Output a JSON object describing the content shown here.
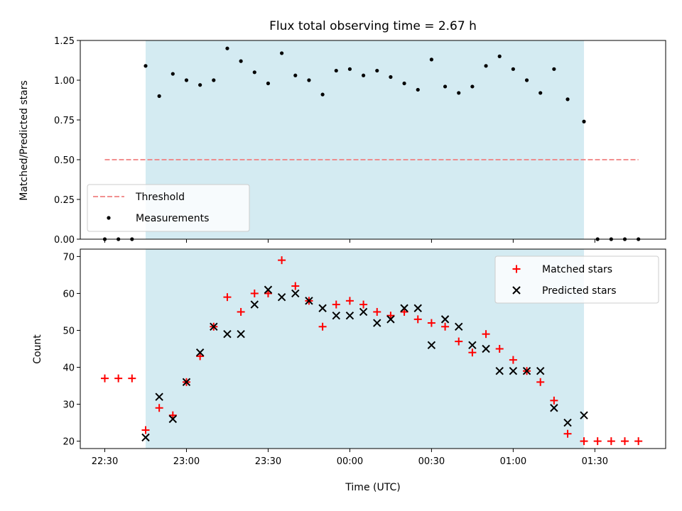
{
  "chart_data": {
    "type": "scatter",
    "title": "Flux total observing time = 2.67 h",
    "xlabel": "Time (UTC)",
    "x_ticks": [
      "22:30",
      "23:00",
      "23:30",
      "00:00",
      "00:30",
      "01:00",
      "01:30"
    ],
    "x_tick_minutes": [
      0,
      30,
      60,
      90,
      120,
      150,
      180
    ],
    "xlim_minutes": [
      -9,
      206
    ],
    "shaded_region_minutes": [
      15,
      176
    ],
    "shade_color": "#d4ebf2",
    "top": {
      "ylabel": "Matched/Predicted stars",
      "ylim": [
        0,
        1.25
      ],
      "yticks": [
        "0.00",
        "0.25",
        "0.50",
        "0.75",
        "1.00",
        "1.25"
      ],
      "ytick_values": [
        0,
        0.25,
        0.5,
        0.75,
        1.0,
        1.25
      ],
      "threshold": {
        "name": "Threshold",
        "value": 0.5,
        "x_range_minutes": [
          0,
          196
        ],
        "color": "#f08080"
      },
      "series": [
        {
          "name": "Measurements",
          "color": "#000000",
          "x": [
            0,
            5,
            10,
            15,
            20,
            25,
            30,
            35,
            40,
            45,
            50,
            55,
            60,
            65,
            70,
            75,
            80,
            85,
            90,
            95,
            100,
            105,
            110,
            115,
            120,
            125,
            130,
            135,
            140,
            145,
            150,
            155,
            160,
            165,
            170,
            176,
            181,
            186,
            191,
            196
          ],
          "y": [
            0,
            0,
            0,
            1.09,
            0.9,
            1.04,
            1.0,
            0.97,
            1.0,
            1.2,
            1.12,
            1.05,
            0.98,
            1.17,
            1.03,
            1.0,
            0.91,
            1.06,
            1.07,
            1.03,
            1.06,
            1.02,
            0.98,
            0.94,
            1.13,
            0.96,
            0.92,
            0.96,
            1.09,
            1.15,
            1.07,
            1.0,
            0.92,
            1.07,
            0.88,
            0.74,
            0,
            0,
            0,
            0
          ]
        }
      ],
      "legend": [
        "Threshold",
        "Measurements"
      ],
      "legend_position": "lower-left"
    },
    "bottom": {
      "ylabel": "Count",
      "ylim": [
        18,
        72
      ],
      "yticks": [
        "20",
        "30",
        "40",
        "50",
        "60",
        "70"
      ],
      "ytick_values": [
        20,
        30,
        40,
        50,
        60,
        70
      ],
      "series": [
        {
          "name": "Matched stars",
          "marker": "plus",
          "color": "#ff0000",
          "x": [
            0,
            5,
            10,
            15,
            20,
            25,
            30,
            35,
            40,
            45,
            50,
            55,
            60,
            65,
            70,
            75,
            80,
            85,
            90,
            95,
            100,
            105,
            110,
            115,
            120,
            125,
            130,
            135,
            140,
            145,
            150,
            155,
            160,
            165,
            170,
            176,
            181,
            186,
            191,
            196
          ],
          "y": [
            37,
            37,
            37,
            23,
            29,
            27,
            36,
            43,
            51,
            59,
            55,
            60,
            60,
            69,
            62,
            58,
            51,
            57,
            58,
            57,
            55,
            54,
            55,
            53,
            52,
            51,
            47,
            44,
            49,
            45,
            42,
            39,
            36,
            31,
            22,
            20,
            20,
            20,
            20,
            20
          ]
        },
        {
          "name": "Predicted stars",
          "marker": "x",
          "color": "#000000",
          "x": [
            15,
            20,
            25,
            30,
            35,
            40,
            45,
            50,
            55,
            60,
            65,
            70,
            75,
            80,
            85,
            90,
            95,
            100,
            105,
            110,
            115,
            120,
            125,
            130,
            135,
            140,
            145,
            150,
            155,
            160,
            165,
            170,
            176
          ],
          "y": [
            21,
            32,
            26,
            36,
            44,
            51,
            49,
            49,
            57,
            61,
            59,
            60,
            58,
            56,
            54,
            54,
            55,
            52,
            53,
            56,
            56,
            46,
            53,
            51,
            46,
            45,
            39,
            39,
            39,
            39,
            29,
            25,
            27
          ]
        }
      ],
      "legend": [
        "Matched stars",
        "Predicted stars"
      ],
      "legend_position": "upper-right"
    }
  }
}
